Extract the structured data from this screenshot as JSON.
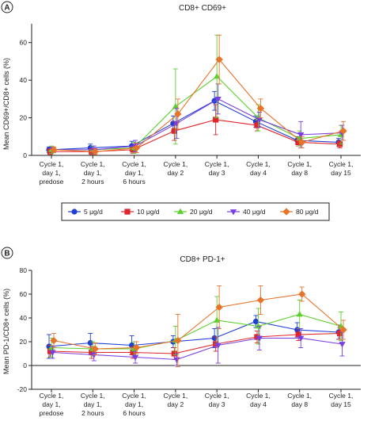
{
  "legend": {
    "entries": [
      {
        "label": "5 μg/d",
        "color": "#1f3fd6",
        "marker": "circle"
      },
      {
        "label": "10 μg/d",
        "color": "#e0262a",
        "marker": "square"
      },
      {
        "label": "20 μg/d",
        "color": "#5cd12e",
        "marker": "triangle-up"
      },
      {
        "label": "40 μg/d",
        "color": "#7a3fe0",
        "marker": "triangle-down"
      },
      {
        "label": "80 μg/d",
        "color": "#e8732a",
        "marker": "diamond"
      }
    ]
  },
  "chart_data": [
    {
      "panel_label": "A",
      "type": "line",
      "title": "CD8+ CD69+",
      "ylabel": "Mean CD69+/CD8+ cells (%)",
      "xlabel": "",
      "ylim": [
        0,
        70
      ],
      "yticks": [
        0,
        20,
        40,
        60
      ],
      "grid": false,
      "categories": [
        [
          "Cycle 1,",
          "day 1,",
          "predose"
        ],
        [
          "Cycle 1,",
          "day 1,",
          "2 hours"
        ],
        [
          "Cycle 1,",
          "day 1,",
          "6 hours"
        ],
        [
          "Cycle 1,",
          "day 2"
        ],
        [
          "Cycle 1,",
          "day 3"
        ],
        [
          "Cycle 1,",
          "day 4"
        ],
        [
          "Cycle 1,",
          "day 8"
        ],
        [
          "Cycle 1,",
          "day 15"
        ]
      ],
      "series": [
        {
          "name": "5 μg/d",
          "values": [
            3,
            4,
            5,
            17,
            29,
            18,
            8,
            7
          ],
          "errors": [
            1.5,
            2,
            2.5,
            4,
            5,
            3,
            2,
            2
          ]
        },
        {
          "name": "10 μg/d",
          "values": [
            2,
            2,
            3,
            13,
            19,
            16,
            7,
            6
          ],
          "errors": [
            1.5,
            1.5,
            2,
            5,
            8,
            3,
            2,
            2
          ]
        },
        {
          "name": "20 μg/d",
          "values": [
            3,
            3,
            4,
            26,
            42,
            20,
            9,
            11
          ],
          "errors": [
            2,
            2,
            3,
            20,
            22,
            7,
            4,
            5
          ]
        },
        {
          "name": "40 μg/d",
          "values": [
            3,
            3,
            5,
            17,
            30,
            19,
            11,
            12
          ],
          "errors": [
            1.5,
            2,
            3,
            8,
            8,
            4,
            7,
            4
          ]
        },
        {
          "name": "80 μg/d",
          "values": [
            3,
            2,
            4,
            22,
            51,
            25,
            7,
            13
          ],
          "errors": [
            1.5,
            1.5,
            2.5,
            8,
            13,
            5,
            3,
            5
          ]
        }
      ]
    },
    {
      "panel_label": "B",
      "type": "line",
      "title": "CD8+ PD-1+",
      "ylabel": "Mean PD-1/CD8+ cells (%)",
      "xlabel": "",
      "ylim": [
        -20,
        80
      ],
      "yticks": [
        -20,
        0,
        20,
        40,
        60,
        80
      ],
      "grid": false,
      "categories": [
        [
          "Cycle 1,",
          "day 1,",
          "predose"
        ],
        [
          "Cycle 1,",
          "day 1,",
          "2 hours"
        ],
        [
          "Cycle 1,",
          "day 1,",
          "6 hours"
        ],
        [
          "Cycle 1,",
          "day 2"
        ],
        [
          "Cycle 1,",
          "day 3"
        ],
        [
          "Cycle 1,",
          "day 4"
        ],
        [
          "Cycle 1,",
          "day 8"
        ],
        [
          "Cycle 1,",
          "day 15"
        ]
      ],
      "series": [
        {
          "name": "5 μg/d",
          "values": [
            16,
            19,
            17,
            20,
            23,
            37,
            30,
            28
          ],
          "errors": [
            10,
            8,
            8,
            5,
            8,
            5,
            6,
            6
          ]
        },
        {
          "name": "10 μg/d",
          "values": [
            12,
            11,
            11,
            10,
            18,
            24,
            26,
            27
          ],
          "errors": [
            5,
            5,
            5,
            5,
            6,
            5,
            5,
            5
          ]
        },
        {
          "name": "20 μg/d",
          "values": [
            15,
            14,
            14,
            21,
            38,
            33,
            43,
            33
          ],
          "errors": [
            8,
            6,
            6,
            12,
            20,
            15,
            12,
            12
          ]
        },
        {
          "name": "40 μg/d",
          "values": [
            11,
            9,
            7,
            5,
            17,
            23,
            23,
            18
          ],
          "errors": [
            5,
            5,
            5,
            5,
            15,
            10,
            8,
            10
          ]
        },
        {
          "name": "80 μg/d",
          "values": [
            21,
            14,
            15,
            21,
            49,
            55,
            60,
            30
          ],
          "errors": [
            6,
            5,
            5,
            22,
            18,
            12,
            6,
            8
          ]
        }
      ]
    }
  ]
}
